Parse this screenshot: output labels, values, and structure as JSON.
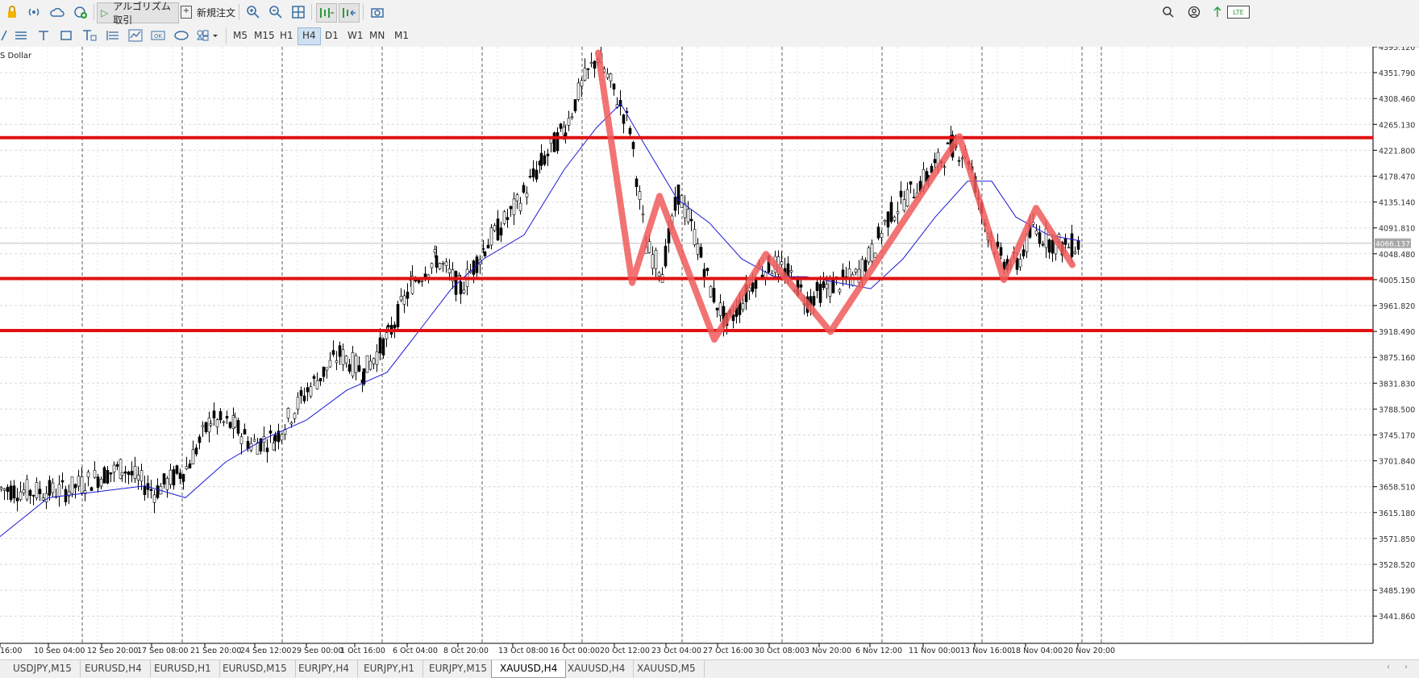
{
  "toolbar": {
    "algo_label": "アルゴリズム取引",
    "new_order_label": "新規注文",
    "battery_label": "LTE"
  },
  "timeframes": [
    "M5",
    "M15",
    "H1",
    "H4",
    "D1",
    "W1",
    "MN",
    "M1"
  ],
  "active_timeframe": "H4",
  "chart": {
    "title": "S Dollar",
    "current_price": "4066.137",
    "price_labels": [
      "4395.120",
      "4351.790",
      "4308.460",
      "4265.130",
      "4221.800",
      "4178.470",
      "4135.140",
      "4091.810",
      "4048.480",
      "4005.150",
      "3961.820",
      "3918.490",
      "3875.160",
      "3831.830",
      "3788.500",
      "3745.170",
      "3701.840",
      "3658.510",
      "3615.180",
      "3571.850",
      "3528.520",
      "3485.190",
      "3441.860"
    ],
    "date_labels": [
      "16:00",
      "10 Sep 04:00",
      "12 Sep 20:00",
      "17 Sep 08:00",
      "21 Sep 20:00",
      "24 Sep 12:00",
      "29 Sep 00:00",
      "1 Oct 16:00",
      "6 Oct 04:00",
      "8 Oct 20:00",
      "13 Oct 08:00",
      "16 Oct 00:00",
      "20 Oct 12:00",
      "23 Oct 04:00",
      "27 Oct 16:00",
      "30 Oct 08:00",
      "3 Nov 20:00",
      "6 Nov 12:00",
      "11 Nov 00:00",
      "13 Nov 16:00",
      "18 Nov 04:00",
      "20 Nov 20:00"
    ],
    "line_color": "#e01010",
    "zigzag_color": "#f05a5a",
    "ma_color": "#1a1ad8"
  },
  "tabs": [
    "USDJPY,M15",
    "EURUSD,H4",
    "EURUSD,H1",
    "EURUSD,M15",
    "EURJPY,H4",
    "EURJPY,H1",
    "EURJPY,M15",
    "XAUUSD,H4",
    "XAUUSD,H4",
    "XAUUSD,M5"
  ],
  "active_tab": 7
}
